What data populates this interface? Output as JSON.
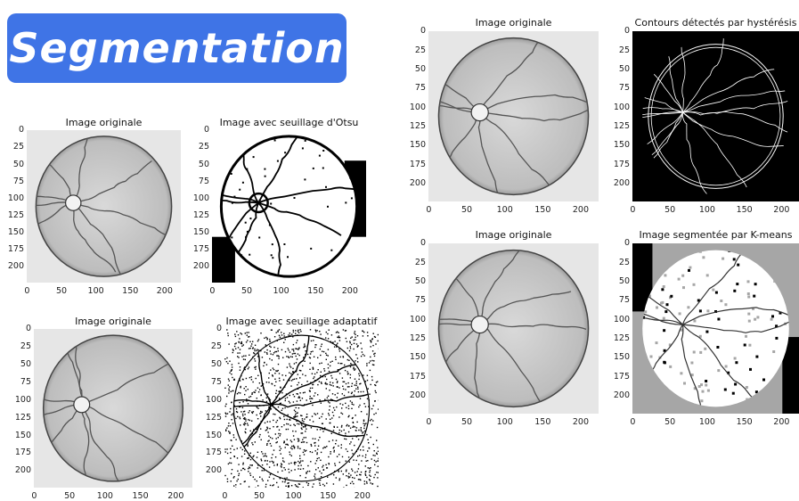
{
  "banner": {
    "title": "Segmentation"
  },
  "colors": {
    "banner": "#3f74e6",
    "banner_text": "#ffffff"
  },
  "panels": [
    {
      "id": "p1",
      "title": "Image originale",
      "style": "retina-gray",
      "yticks": [
        "0",
        "25",
        "50",
        "75",
        "100",
        "125",
        "150",
        "175",
        "200"
      ],
      "xticks": [
        "0",
        "50",
        "100",
        "150",
        "200"
      ]
    },
    {
      "id": "p2",
      "title": "Image avec seuillage d'Otsu",
      "style": "otsu",
      "yticks": [
        "0",
        "25",
        "50",
        "75",
        "100",
        "125",
        "150",
        "175",
        "200"
      ],
      "xticks": [
        "0",
        "50",
        "100",
        "150",
        "200"
      ]
    },
    {
      "id": "p3",
      "title": "Image originale",
      "style": "retina-gray",
      "yticks": [
        "0",
        "25",
        "50",
        "75",
        "100",
        "125",
        "150",
        "175",
        "200"
      ],
      "xticks": [
        "0",
        "50",
        "100",
        "150",
        "200"
      ]
    },
    {
      "id": "p4",
      "title": "Contours détectés par hystérésis",
      "style": "edges",
      "yticks": [
        "0",
        "25",
        "50",
        "75",
        "100",
        "125",
        "150",
        "175",
        "200"
      ],
      "xticks": [
        "0",
        "50",
        "100",
        "150",
        "200"
      ]
    },
    {
      "id": "p5",
      "title": "Image originale",
      "style": "retina-gray",
      "yticks": [
        "0",
        "25",
        "50",
        "75",
        "100",
        "125",
        "150",
        "175",
        "200"
      ],
      "xticks": [
        "0",
        "50",
        "100",
        "150",
        "200"
      ]
    },
    {
      "id": "p6",
      "title": "Image segmentée par K-means",
      "style": "kmeans",
      "yticks": [
        "0",
        "25",
        "50",
        "75",
        "100",
        "125",
        "150",
        "175",
        "200"
      ],
      "xticks": [
        "0",
        "50",
        "100",
        "150",
        "200"
      ]
    },
    {
      "id": "p7",
      "title": "Image originale",
      "style": "retina-gray",
      "yticks": [
        "0",
        "25",
        "50",
        "75",
        "100",
        "125",
        "150",
        "175",
        "200"
      ],
      "xticks": [
        "0",
        "50",
        "100",
        "150",
        "200"
      ]
    },
    {
      "id": "p8",
      "title": "Image avec seuillage adaptatif",
      "style": "adaptive",
      "yticks": [
        "0",
        "25",
        "50",
        "75",
        "100",
        "125",
        "150",
        "175",
        "200"
      ],
      "xticks": [
        "0",
        "50",
        "100",
        "150",
        "200"
      ]
    }
  ]
}
